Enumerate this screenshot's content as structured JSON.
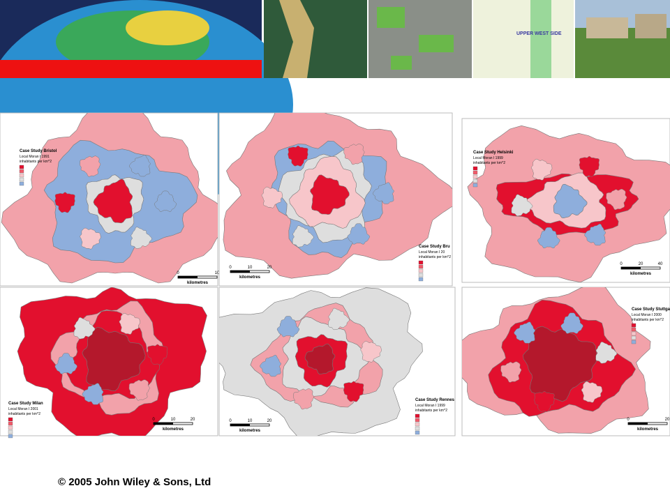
{
  "footer": {
    "copyright": "© 2005 John Wiley & Sons, Ltd"
  },
  "banner": {
    "map_label": "UPPER WEST SIDE"
  },
  "panels": [
    {
      "title": "Case Study Bristol",
      "subtitle": "Local Moran I 1991",
      "units": "inhabitants per km^2",
      "scale_label": "kilometres",
      "scale_ticks": [
        "0",
        "10"
      ]
    },
    {
      "title": "Case Study Bru",
      "subtitle": "Local Moran I 20",
      "units": "inhabitants per km^2",
      "scale_label": "kilometres",
      "scale_ticks": [
        "0",
        "10",
        "20"
      ]
    },
    {
      "title": "Case Study Helsinki",
      "subtitle": "Local Moran I 1999",
      "units": "inhabitants per km^2",
      "scale_label": "kilometres",
      "scale_ticks": [
        "0",
        "20",
        "40"
      ]
    },
    {
      "title": "Case Study Milan",
      "subtitle": "Local Moran I 2001",
      "units": "inhabitants per km^2",
      "scale_label": "kilometres",
      "scale_ticks": [
        "0",
        "10",
        "20"
      ]
    },
    {
      "title": "Case Study Rennes",
      "subtitle": "Local Moran I 1999",
      "units": "inhabitants per km^2",
      "scale_label": "kilometres",
      "scale_ticks": [
        "0",
        "10",
        "20"
      ]
    },
    {
      "title": "Case Study Stuttga",
      "subtitle": "Local Moran I 2000",
      "units": "inhabitants per km^2",
      "scale_label": "kilometres",
      "scale_ticks": [
        "0",
        "20"
      ]
    }
  ]
}
